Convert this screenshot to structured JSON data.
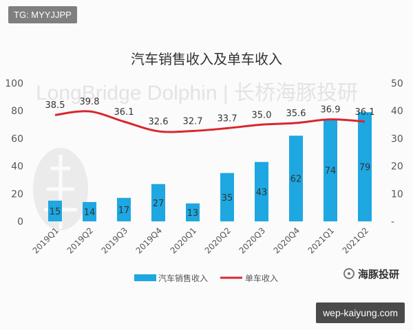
{
  "overlays": {
    "top_tag": "TG: MYYJJPP",
    "bottom_tag": "wep-kaiyung.com",
    "watermark": "LongBridge Dolphin | 长桥海豚投研",
    "brand": "海豚投研"
  },
  "colors": {
    "bar": "#1ea7e1",
    "line": "#d9262c",
    "axis_text": "#555555"
  },
  "chart_data": {
    "type": "bar",
    "title": "汽车销售收入及单车收入",
    "categories": [
      "2019Q1",
      "2019Q2",
      "2019Q3",
      "2019Q4",
      "2020Q1",
      "2020Q2",
      "2020Q3",
      "2020Q4",
      "2021Q1",
      "2021Q2"
    ],
    "series": [
      {
        "name": "汽车销售收入",
        "type": "bar",
        "axis": "left",
        "values": [
          15,
          14,
          17,
          27,
          13,
          35,
          43,
          62,
          74,
          79
        ]
      },
      {
        "name": "单车收入",
        "type": "line",
        "axis": "right",
        "values": [
          38.5,
          39.8,
          36.1,
          32.6,
          32.7,
          33.7,
          35.0,
          35.6,
          36.9,
          36.1
        ]
      }
    ],
    "left_axis": {
      "ticks": [
        "0",
        "20",
        "40",
        "60",
        "80",
        "100"
      ],
      "ylim": [
        0,
        100
      ]
    },
    "right_axis": {
      "ticks": [
        "-",
        "10",
        "20",
        "30",
        "40",
        "50"
      ],
      "ylim": [
        0,
        50
      ]
    },
    "bar_labels": [
      "15",
      "14",
      "17",
      "27",
      "13",
      "35",
      "43",
      "62",
      "74",
      "79"
    ],
    "line_labels": [
      "38.5",
      "39.8",
      "36.1",
      "32.6",
      "32.7",
      "33.7",
      "35.0",
      "35.6",
      "36.9",
      "36.1"
    ],
    "legend": {
      "position": "bottom"
    },
    "grid": false
  }
}
